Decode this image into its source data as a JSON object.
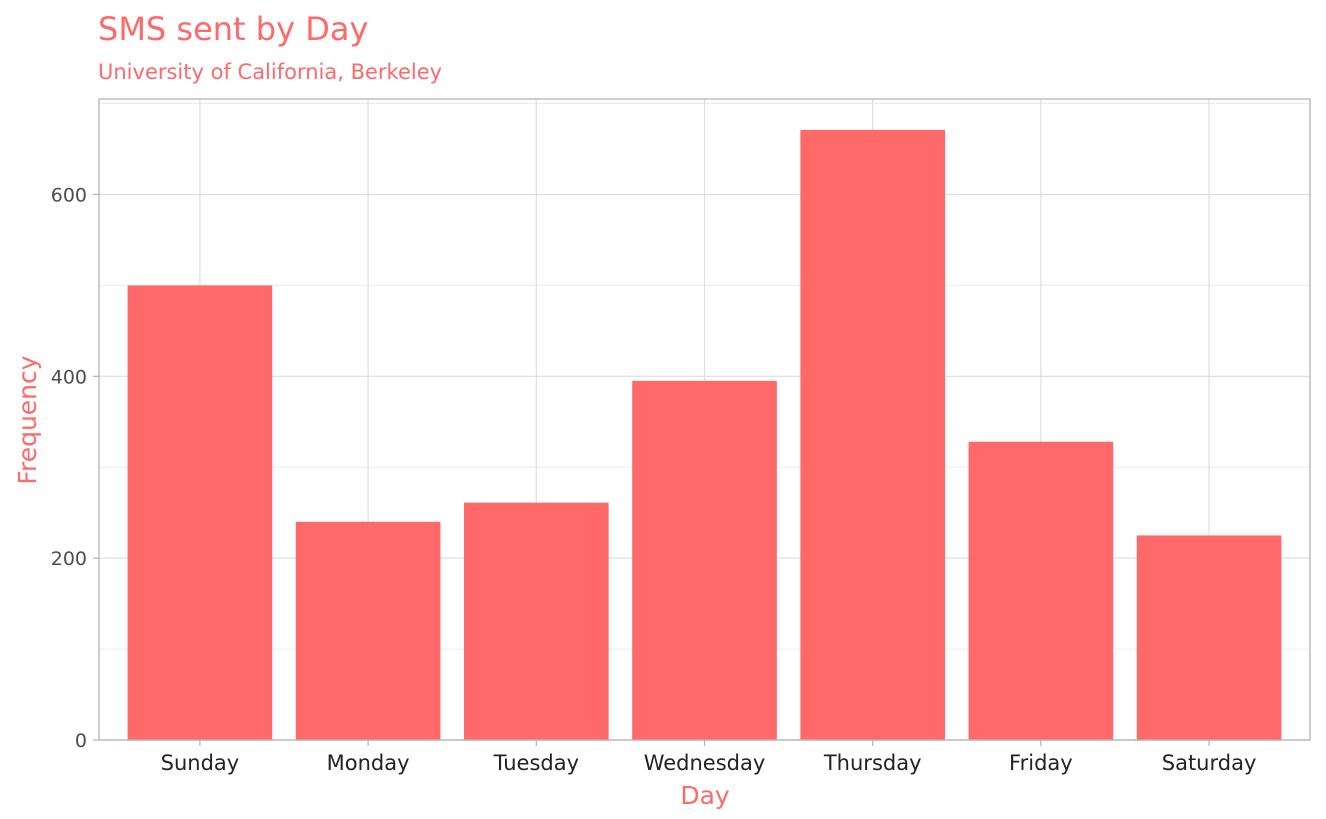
{
  "colors": {
    "accent": "#ff6969",
    "grid_major": "#dedede",
    "grid_minor": "#ececec",
    "panel_border": "#b3b3b3"
  },
  "chart_data": {
    "type": "bar",
    "title": "SMS sent by Day",
    "subtitle": "University of California, Berkeley",
    "xlabel": "Day",
    "ylabel": "Frequency",
    "categories": [
      "Sunday",
      "Monday",
      "Tuesday",
      "Wednesday",
      "Thursday",
      "Friday",
      "Saturday"
    ],
    "values": [
      500,
      240,
      261,
      395,
      671,
      328,
      225
    ],
    "ylim": [
      0,
      705
    ],
    "yticks": [
      0,
      200,
      400,
      600
    ],
    "grid": true,
    "legend": "none"
  }
}
